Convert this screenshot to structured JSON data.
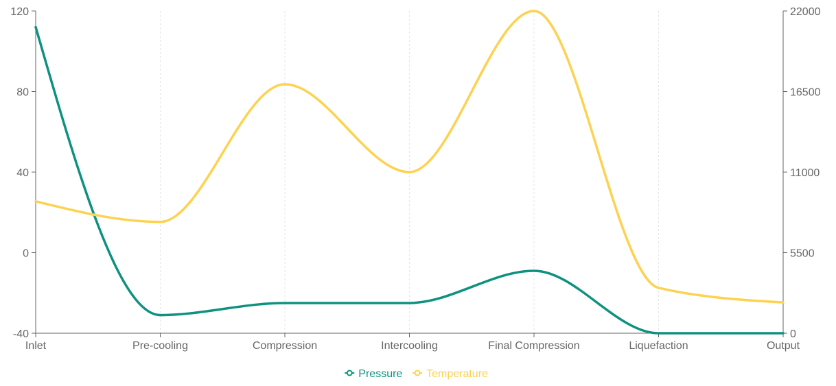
{
  "chart_data": {
    "type": "line",
    "categories": [
      "Inlet",
      "Pre-cooling",
      "Compression",
      "Intercooling",
      "Final Compression",
      "Liquefaction",
      "Output"
    ],
    "left_axis": {
      "ylim": [
        -40,
        120
      ],
      "ticks": [
        "-40",
        "0",
        "40",
        "80",
        "120"
      ]
    },
    "right_axis": {
      "ylim": [
        0,
        22000
      ],
      "ticks": [
        "0",
        "5500",
        "11000",
        "16500",
        "22000"
      ]
    },
    "series": [
      {
        "name": "Pressure",
        "axis": "left",
        "color": "#0e9180",
        "values": [
          112,
          -31,
          -25,
          -25,
          -9,
          -40,
          -40
        ]
      },
      {
        "name": "Temperature",
        "axis": "right",
        "color": "#fdd250",
        "values": [
          9000,
          7600,
          17000,
          11000,
          22000,
          3100,
          2100
        ]
      }
    ],
    "grid": "vertical-dashed",
    "legend": "bottom-center"
  }
}
